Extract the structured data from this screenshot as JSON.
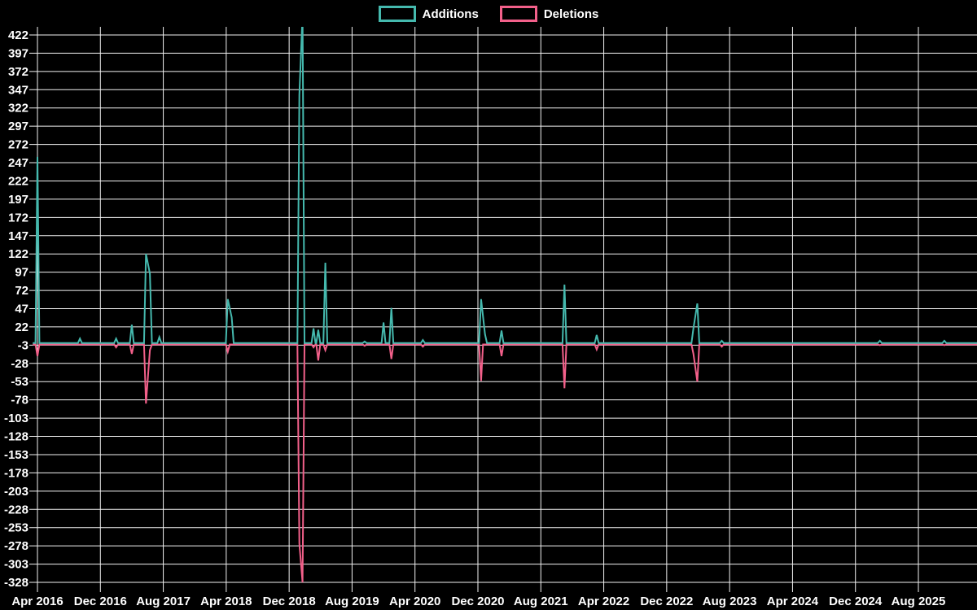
{
  "legend": {
    "items": [
      {
        "label": "Additions",
        "color": "#45B9AE"
      },
      {
        "label": "Deletions",
        "color": "#F2608A"
      }
    ]
  },
  "chart_data": {
    "type": "line",
    "title": "",
    "xlabel": "",
    "ylabel": "",
    "x_unit": "months since Apr 2016",
    "x_axis": {
      "tick_labels": [
        "Apr 2016",
        "Dec 2016",
        "Aug 2017",
        "Apr 2018",
        "Dec 2018",
        "Aug 2019",
        "Apr 2020",
        "Dec 2020",
        "Aug 2021",
        "Apr 2022",
        "Dec 2022",
        "Aug 2023",
        "Apr 2024",
        "Dec 2024",
        "Aug 2025"
      ],
      "tick_month_positions": [
        0,
        8,
        16,
        24,
        32,
        40,
        48,
        56,
        64,
        72,
        80,
        88,
        96,
        104,
        112
      ],
      "range_months": [
        -0.6,
        119.8
      ]
    },
    "y_axis": {
      "tick_values": [
        422,
        397,
        372,
        347,
        322,
        297,
        272,
        247,
        222,
        197,
        172,
        147,
        122,
        97,
        72,
        47,
        22,
        -3,
        -28,
        -53,
        -78,
        -103,
        -128,
        -153,
        -178,
        -203,
        -228,
        -253,
        -278,
        -303,
        -328
      ],
      "step": 25,
      "displayed_range": [
        -328,
        422
      ],
      "note": "tallest additions spike is clipped at top of plot"
    },
    "grid": true,
    "legend_position": "top-center",
    "background_color": "#000000",
    "grid_color": "#F2F2F2",
    "text_color": "#FFFFFF",
    "series": [
      {
        "name": "Additions",
        "color": "#45B9AE",
        "baseline": 0,
        "points": [
          [
            0,
            255
          ],
          [
            5.4,
            6
          ],
          [
            10,
            6
          ],
          [
            12,
            25
          ],
          [
            13.8,
            122
          ],
          [
            14.3,
            95
          ],
          [
            15.5,
            8
          ],
          [
            24.2,
            60
          ],
          [
            24.7,
            35
          ],
          [
            33.3,
            340
          ],
          [
            33.7,
            450
          ],
          [
            35.1,
            20
          ],
          [
            35.7,
            18
          ],
          [
            36.6,
            110
          ],
          [
            41.6,
            2
          ],
          [
            44,
            28
          ],
          [
            45,
            48
          ],
          [
            49,
            4
          ],
          [
            56.4,
            60
          ],
          [
            56.9,
            12
          ],
          [
            59,
            17
          ],
          [
            67,
            80
          ],
          [
            71.1,
            11
          ],
          [
            83.4,
            20
          ],
          [
            83.9,
            54
          ],
          [
            87,
            3
          ],
          [
            107.1,
            3
          ],
          [
            115.3,
            3
          ]
        ]
      },
      {
        "name": "Deletions",
        "color": "#F2608A",
        "baseline": -2,
        "points": [
          [
            0,
            -18
          ],
          [
            10,
            -6
          ],
          [
            12,
            -15
          ],
          [
            13.8,
            -83
          ],
          [
            14.3,
            -10
          ],
          [
            24.2,
            -12
          ],
          [
            33.3,
            -275
          ],
          [
            33.7,
            -328
          ],
          [
            35.1,
            -6
          ],
          [
            35.7,
            -24
          ],
          [
            36.6,
            -10
          ],
          [
            41.6,
            -4
          ],
          [
            45,
            -22
          ],
          [
            49,
            -5
          ],
          [
            56.4,
            -52
          ],
          [
            59,
            -18
          ],
          [
            67,
            -62
          ],
          [
            71.1,
            -9
          ],
          [
            83.4,
            -15
          ],
          [
            83.9,
            -53
          ],
          [
            87,
            -5
          ],
          [
            107.1,
            -3
          ],
          [
            115.3,
            -3
          ]
        ]
      }
    ]
  }
}
